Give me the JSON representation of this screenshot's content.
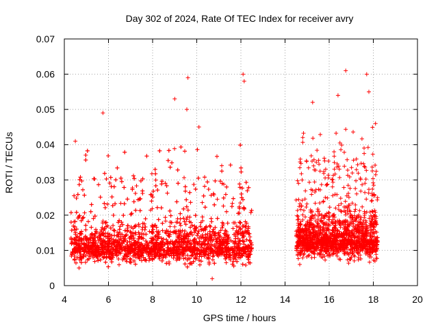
{
  "chart_data": {
    "type": "scatter",
    "title": "Day 302 of 2024, Rate Of TEC Index for receiver avry",
    "xlabel": "GPS time / hours",
    "ylabel": "ROTI / TECUs",
    "xlim": [
      4,
      20
    ],
    "ylim": [
      0,
      0.07
    ],
    "xticks": [
      "4",
      "6",
      "8",
      "10",
      "12",
      "14",
      "16",
      "18",
      "20"
    ],
    "yticks": [
      "0",
      "0.01",
      "0.02",
      "0.03",
      "0.04",
      "0.05",
      "0.06",
      "0.07"
    ],
    "grid": true,
    "marker": "plus",
    "color": "#ff0000",
    "series": [
      {
        "name": "ROTI",
        "segments": [
          {
            "x_start": 4.3,
            "x_end": 12.5,
            "baseline": 0.011,
            "spread": 0.006,
            "typical_max": 0.03
          },
          {
            "x_start": 14.5,
            "x_end": 18.2,
            "baseline": 0.013,
            "spread": 0.007,
            "typical_max": 0.035
          }
        ],
        "notable_points": [
          {
            "x": 5.75,
            "y": 0.049
          },
          {
            "x": 9.6,
            "y": 0.059
          },
          {
            "x": 12.1,
            "y": 0.06
          },
          {
            "x": 12.15,
            "y": 0.058
          },
          {
            "x": 9.0,
            "y": 0.053
          },
          {
            "x": 9.55,
            "y": 0.05
          },
          {
            "x": 10.1,
            "y": 0.045
          },
          {
            "x": 16.75,
            "y": 0.061
          },
          {
            "x": 17.7,
            "y": 0.06
          },
          {
            "x": 16.4,
            "y": 0.054
          },
          {
            "x": 17.8,
            "y": 0.055
          },
          {
            "x": 15.25,
            "y": 0.052
          },
          {
            "x": 18.1,
            "y": 0.046
          },
          {
            "x": 4.5,
            "y": 0.041
          },
          {
            "x": 10.7,
            "y": 0.002
          }
        ]
      }
    ]
  }
}
